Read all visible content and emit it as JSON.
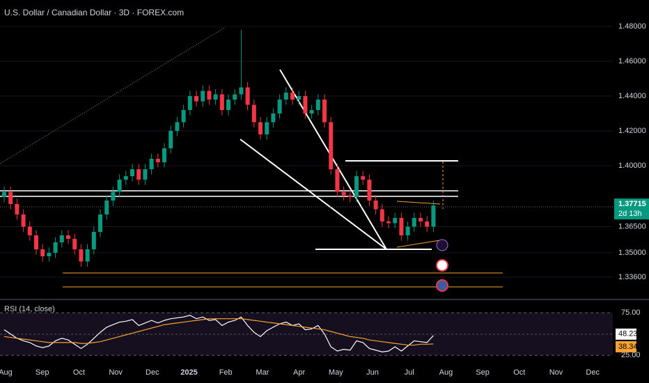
{
  "chart_data": [
    {
      "type": "candlestick",
      "title": "U.S. Dollar / Canadian Dollar · 3D · FOREX.com",
      "up_color": "#089981",
      "down_color": "#f23645",
      "open": [
        1.382,
        1.385,
        1.378,
        1.372,
        1.365,
        1.36,
        1.352,
        1.348,
        1.35,
        1.356,
        1.36,
        1.358,
        1.352,
        1.345,
        1.352,
        1.362,
        1.372,
        1.38,
        1.385,
        1.392,
        1.394,
        1.398,
        1.392,
        1.398,
        1.404,
        1.402,
        1.41,
        1.42,
        1.425,
        1.432,
        1.44,
        1.437,
        1.443,
        1.438,
        1.441,
        1.432,
        1.438,
        1.441,
        1.445,
        1.435,
        1.425,
        1.418,
        1.425,
        1.43,
        1.438,
        1.442,
        1.438,
        1.44,
        1.43,
        1.432,
        1.438,
        1.425,
        1.398,
        1.385,
        1.383,
        1.382,
        1.394,
        1.392,
        1.38,
        1.375,
        1.368,
        1.367,
        1.37,
        1.36,
        1.365,
        1.37,
        1.368,
        1.365
      ],
      "high": [
        1.388,
        1.388,
        1.381,
        1.375,
        1.368,
        1.363,
        1.355,
        1.353,
        1.359,
        1.363,
        1.363,
        1.361,
        1.355,
        1.355,
        1.365,
        1.375,
        1.383,
        1.388,
        1.395,
        1.397,
        1.401,
        1.401,
        1.401,
        1.407,
        1.407,
        1.413,
        1.423,
        1.428,
        1.435,
        1.443,
        1.443,
        1.446,
        1.446,
        1.444,
        1.444,
        1.441,
        1.444,
        1.478,
        1.448,
        1.438,
        1.428,
        1.428,
        1.433,
        1.441,
        1.445,
        1.445,
        1.443,
        1.443,
        1.435,
        1.441,
        1.441,
        1.428,
        1.401,
        1.388,
        1.386,
        1.397,
        1.397,
        1.395,
        1.383,
        1.378,
        1.371,
        1.373,
        1.373,
        1.368,
        1.373,
        1.373,
        1.371,
        1.38
      ],
      "low": [
        1.379,
        1.375,
        1.369,
        1.362,
        1.357,
        1.349,
        1.345,
        1.345,
        1.347,
        1.353,
        1.355,
        1.349,
        1.342,
        1.342,
        1.349,
        1.359,
        1.369,
        1.377,
        1.382,
        1.389,
        1.391,
        1.389,
        1.389,
        1.395,
        1.399,
        1.399,
        1.407,
        1.417,
        1.422,
        1.429,
        1.434,
        1.434,
        1.435,
        1.435,
        1.429,
        1.429,
        1.435,
        1.438,
        1.432,
        1.422,
        1.415,
        1.415,
        1.422,
        1.427,
        1.435,
        1.435,
        1.435,
        1.427,
        1.427,
        1.429,
        1.422,
        1.395,
        1.382,
        1.38,
        1.379,
        1.379,
        1.389,
        1.377,
        1.372,
        1.365,
        1.364,
        1.364,
        1.357,
        1.357,
        1.362,
        1.365,
        1.362,
        1.362
      ],
      "close": [
        1.385,
        1.378,
        1.372,
        1.365,
        1.36,
        1.352,
        1.348,
        1.35,
        1.356,
        1.36,
        1.358,
        1.352,
        1.345,
        1.352,
        1.362,
        1.372,
        1.38,
        1.385,
        1.392,
        1.394,
        1.398,
        1.392,
        1.398,
        1.404,
        1.402,
        1.41,
        1.42,
        1.425,
        1.432,
        1.44,
        1.437,
        1.443,
        1.438,
        1.441,
        1.432,
        1.438,
        1.441,
        1.445,
        1.435,
        1.425,
        1.418,
        1.425,
        1.43,
        1.438,
        1.442,
        1.438,
        1.44,
        1.43,
        1.432,
        1.438,
        1.425,
        1.398,
        1.385,
        1.383,
        1.382,
        1.394,
        1.392,
        1.38,
        1.375,
        1.368,
        1.367,
        1.37,
        1.36,
        1.365,
        1.37,
        1.368,
        1.365,
        1.37715
      ],
      "countdown": "2d 13h",
      "ylim": [
        1.3272,
        1.4952
      ],
      "yticks": [
        {
          "value": 1.48,
          "label": "1.48000"
        },
        {
          "value": 1.46,
          "label": "1.46000"
        },
        {
          "value": 1.44,
          "label": "1.44000"
        },
        {
          "value": 1.42,
          "label": "1.42000"
        },
        {
          "value": 1.4,
          "label": "1.40000"
        },
        {
          "value": 1.365,
          "label": "1.36500"
        },
        {
          "value": 1.35,
          "label": "1.35000"
        },
        {
          "value": 1.336,
          "label": "1.33600"
        }
      ],
      "xticks": [
        "Aug",
        "Sep",
        "Oct",
        "Nov",
        "Dec",
        "2025",
        "Feb",
        "Mar",
        "Apr",
        "May",
        "Jun",
        "Jul",
        "Aug",
        "Sep",
        "Oct",
        "Nov",
        "Dec"
      ]
    },
    {
      "type": "line",
      "title": "RSI (14, close)",
      "series": [
        {
          "color": "#ffffff",
          "values": [
            55,
            50,
            45,
            42,
            40,
            36,
            34,
            36,
            42,
            45,
            43,
            38,
            33,
            38,
            45,
            52,
            58,
            61,
            64,
            65,
            67,
            60,
            63,
            66,
            63,
            66,
            68,
            69,
            70,
            72,
            68,
            70,
            66,
            67,
            60,
            64,
            66,
            70,
            60,
            52,
            47,
            54,
            58,
            62,
            64,
            60,
            62,
            55,
            56,
            60,
            50,
            35,
            30,
            32,
            31,
            42,
            40,
            33,
            31,
            29,
            30,
            35,
            30,
            36,
            42,
            41,
            40,
            48.23
          ]
        },
        {
          "color": "#f7a234",
          "values": [
            47,
            46,
            45,
            44,
            43,
            42,
            41,
            40,
            40,
            40,
            40,
            40,
            39,
            39,
            40,
            41,
            43,
            45,
            47,
            49,
            51,
            53,
            55,
            57,
            59,
            61,
            62,
            63,
            64,
            65,
            66,
            67,
            68,
            68,
            68,
            68,
            68,
            68,
            67,
            66,
            65,
            64,
            63,
            62,
            61,
            60,
            59,
            58,
            57,
            56,
            55,
            53,
            51,
            49,
            47,
            46,
            45,
            43,
            42,
            41,
            40,
            39,
            38,
            37,
            37,
            38,
            38,
            38.34
          ]
        }
      ],
      "ylim": [
        17,
        89
      ],
      "yticks": [
        {
          "value": 75,
          "label": "75.00"
        },
        {
          "value": 25,
          "label": "25.00"
        }
      ]
    }
  ]
}
